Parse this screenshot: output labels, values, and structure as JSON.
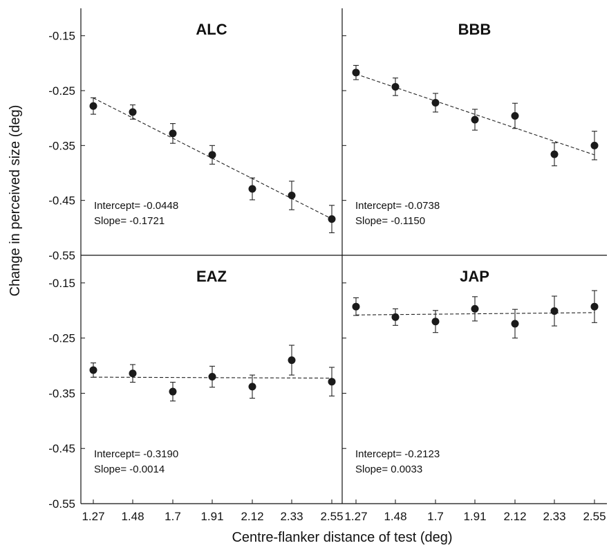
{
  "chart_data": {
    "type": "scatter",
    "layout": "2x2 panels with shared axes",
    "xlabel": "Centre-flanker distance of test (deg)",
    "ylabel": "Change in perceived size (deg)",
    "x_ticks": [
      "1.27",
      "1.48",
      "1.7",
      "1.91",
      "2.12",
      "2.33",
      "2.55"
    ],
    "y_ticks": [
      "-0.15",
      "-0.25",
      "-0.35",
      "-0.45",
      "-0.55"
    ],
    "xlim": [
      1.23,
      2.6
    ],
    "ylim": [
      -0.55,
      -0.1
    ],
    "grid": false,
    "panels": [
      {
        "title": "ALC",
        "intercept_text": "Intercept= -0.0448",
        "slope_text": "Slope= -0.1721",
        "intercept": -0.0448,
        "slope": -0.1721,
        "x": [
          1.27,
          1.48,
          1.7,
          1.91,
          2.12,
          2.33,
          2.55
        ],
        "y": [
          -0.278,
          -0.289,
          -0.328,
          -0.367,
          -0.429,
          -0.441,
          -0.484
        ],
        "err": [
          0.015,
          0.013,
          0.018,
          0.017,
          0.02,
          0.026,
          0.025
        ]
      },
      {
        "title": "BBB",
        "intercept_text": "Intercept= -0.0738",
        "slope_text": "Slope= -0.1150",
        "intercept": -0.0738,
        "slope": -0.115,
        "x": [
          1.27,
          1.48,
          1.7,
          1.91,
          2.12,
          2.33,
          2.55
        ],
        "y": [
          -0.217,
          -0.243,
          -0.272,
          -0.303,
          -0.296,
          -0.366,
          -0.35
        ],
        "err": [
          0.013,
          0.016,
          0.017,
          0.019,
          0.023,
          0.021,
          0.026
        ]
      },
      {
        "title": "EAZ",
        "intercept_text": "Intercept= -0.3190",
        "slope_text": "Slope= -0.0014",
        "intercept": -0.319,
        "slope": -0.0014,
        "x": [
          1.27,
          1.48,
          1.7,
          1.91,
          2.12,
          2.33,
          2.55
        ],
        "y": [
          -0.308,
          -0.314,
          -0.347,
          -0.32,
          -0.338,
          -0.29,
          -0.329
        ],
        "err": [
          0.013,
          0.016,
          0.017,
          0.019,
          0.021,
          0.027,
          0.026
        ]
      },
      {
        "title": "JAP",
        "intercept_text": "Intercept= -0.2123",
        "slope_text": "Slope= 0.0033",
        "intercept": -0.2123,
        "slope": 0.0033,
        "x": [
          1.27,
          1.48,
          1.7,
          1.91,
          2.12,
          2.33,
          2.55
        ],
        "y": [
          -0.193,
          -0.212,
          -0.22,
          -0.197,
          -0.224,
          -0.201,
          -0.193
        ],
        "err": [
          0.016,
          0.015,
          0.02,
          0.022,
          0.026,
          0.027,
          0.029
        ]
      }
    ]
  }
}
